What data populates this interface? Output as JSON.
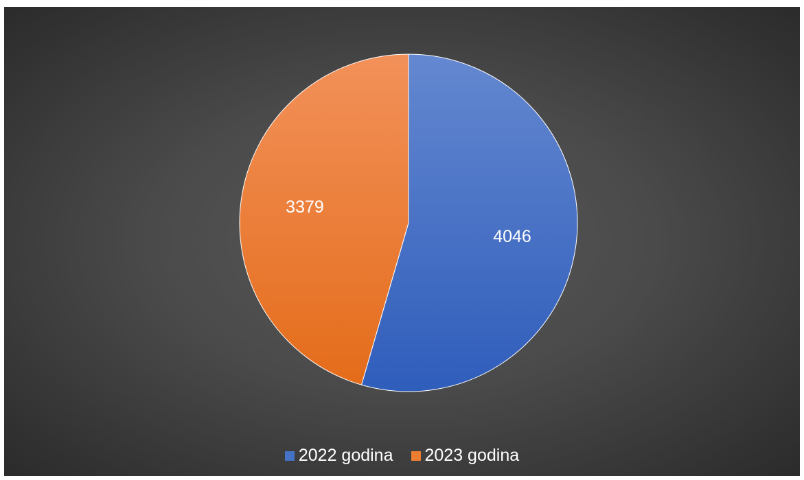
{
  "chart_data": {
    "type": "pie",
    "categories": [
      "2022 godina",
      "2023 godina"
    ],
    "values": [
      4046,
      3379
    ],
    "colors": [
      "#4472C4",
      "#ED7D31"
    ],
    "data_labels": [
      "4046",
      "3379"
    ],
    "legend_position": "bottom",
    "start_angle": "top, clockwise"
  }
}
